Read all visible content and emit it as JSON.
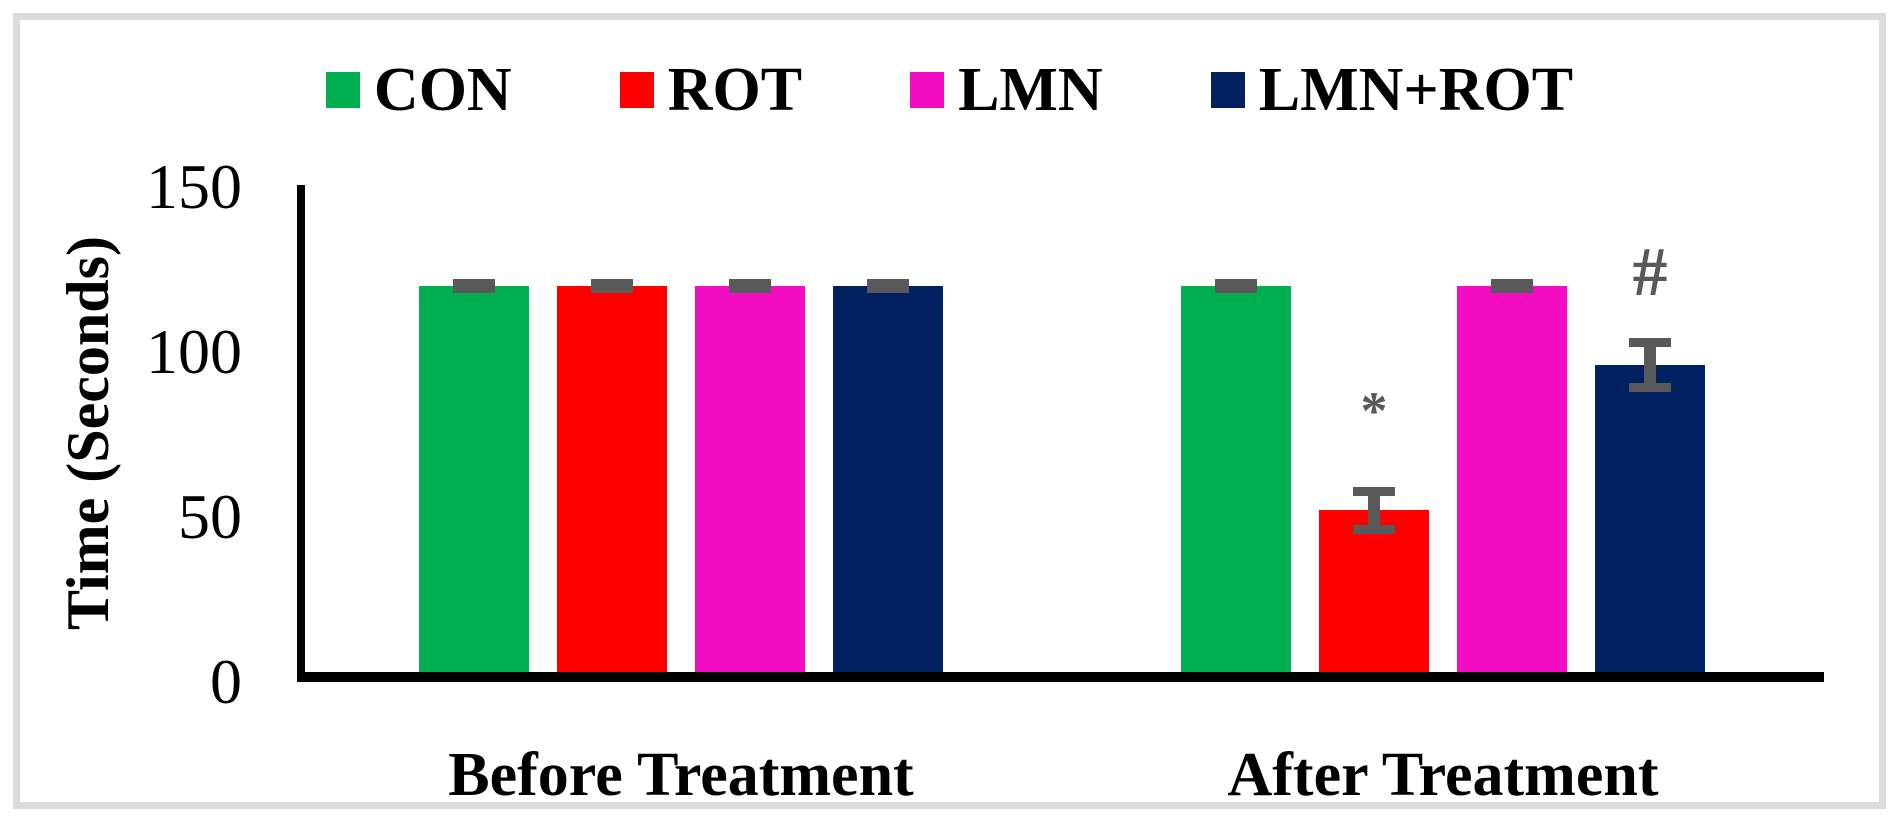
{
  "figure": {
    "background": "#FFFFFF",
    "frame_color": "#DBDBDB"
  },
  "chart_data": {
    "type": "bar",
    "title": "",
    "categories": [
      "Before Treatment",
      "After Treatment"
    ],
    "series": [
      {
        "name": "CON",
        "color": "#00B050",
        "values": [
          120,
          120
        ],
        "errors": [
          1,
          1
        ]
      },
      {
        "name": "ROT",
        "color": "#FF0000",
        "values": [
          120,
          52
        ],
        "errors": [
          1,
          6
        ]
      },
      {
        "name": "LMN",
        "color": "#F20DC3",
        "values": [
          120,
          120
        ],
        "errors": [
          1,
          1
        ]
      },
      {
        "name": "LMN+ROT",
        "color": "#002060",
        "values": [
          120,
          96
        ],
        "errors": [
          1,
          7
        ]
      }
    ],
    "xlabel": "",
    "ylabel": "Time (Seconds)",
    "ylim": [
      0,
      150
    ],
    "yticks": [
      0,
      50,
      100,
      150
    ],
    "grid": false,
    "legend_position": "top",
    "error_bar_color": "#595959",
    "annotation_color": "#595959",
    "annotations": [
      {
        "text": "*",
        "series": "ROT",
        "category": "After Treatment",
        "color": "#595959"
      },
      {
        "text": "#",
        "series": "LMN+ROT",
        "category": "After Treatment",
        "color": "#595959"
      }
    ]
  }
}
